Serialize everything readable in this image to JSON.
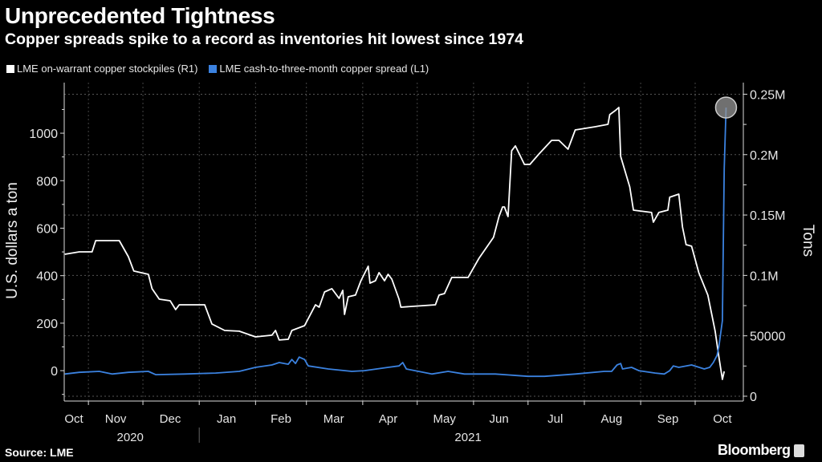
{
  "header": {
    "title": "Unprecedented Tightness",
    "subtitle": "Copper spreads spike to a record as inventories hit lowest since 1974"
  },
  "footer": {
    "source": "Source: LME",
    "brand": "Bloomberg"
  },
  "colors": {
    "background": "#000000",
    "stockpiles": "#ffffff",
    "spread": "#3b82e0",
    "grid": "#555555",
    "highlight": "#9a9a9a"
  },
  "chart_data": {
    "type": "line",
    "title": "Unprecedented Tightness",
    "xlabel": "",
    "x_unit": "days since 2020-10-01",
    "ylabel_left": "U.S. dollars a ton",
    "ylabel_right": "Tons",
    "ylim_left": [
      -128,
      1213
    ],
    "ylim_right": [
      -4000,
      259600
    ],
    "xlim": [
      0,
      395
    ],
    "grid": true,
    "legend_position": "top-left",
    "left_ticks": [
      "0",
      "200",
      "400",
      "600",
      "800",
      "1000"
    ],
    "left_tick_values": [
      0,
      200,
      400,
      600,
      800,
      1000
    ],
    "right_ticks": [
      "0",
      "50000",
      "0.1M",
      "0.15M",
      "0.2M",
      "0.25M"
    ],
    "right_tick_values": [
      0,
      50000,
      100000,
      150000,
      200000,
      250000
    ],
    "month_boundaries": [
      31,
      61,
      92,
      123,
      151,
      182,
      212,
      243,
      273,
      304,
      335,
      365
    ],
    "months": [
      {
        "label": "Oct",
        "day": 23
      },
      {
        "label": "Nov",
        "day": 46
      },
      {
        "label": "Dec",
        "day": 76
      },
      {
        "label": "Jan",
        "day": 107
      },
      {
        "label": "Feb",
        "day": 137
      },
      {
        "label": "Mar",
        "day": 166
      },
      {
        "label": "Apr",
        "day": 196
      },
      {
        "label": "May",
        "day": 227
      },
      {
        "label": "Jun",
        "day": 257
      },
      {
        "label": "Jul",
        "day": 288
      },
      {
        "label": "Aug",
        "day": 319
      },
      {
        "label": "Sep",
        "day": 350
      },
      {
        "label": "Oct",
        "day": 380
      }
    ],
    "years": [
      {
        "label": "2020",
        "day": 54
      },
      {
        "label": "2021",
        "day": 240
      }
    ],
    "year_separator_day": 92,
    "series": [
      {
        "name": "LME on-warrant copper stockpiles (R1)",
        "axis": "right",
        "color": "#ffffff",
        "x": [
          18,
          26,
          33,
          35,
          48,
          53,
          56,
          64,
          66,
          70,
          76,
          79,
          81,
          95,
          99,
          106,
          114,
          123,
          132,
          134,
          136,
          141,
          143,
          150,
          156,
          158,
          161,
          165,
          169,
          171,
          172,
          174,
          178,
          181,
          185,
          186,
          189,
          191,
          194,
          196,
          198,
          202,
          203,
          222,
          224,
          227,
          231,
          240,
          246,
          254,
          257,
          259,
          260,
          262,
          264,
          266,
          271,
          274,
          279,
          286,
          290,
          295,
          299,
          310,
          317,
          318,
          321,
          323,
          324,
          329,
          331,
          341,
          342,
          345,
          350,
          351,
          356,
          358,
          360,
          363,
          367,
          372,
          376,
          378,
          380,
          381
        ],
        "values": [
          117500,
          119500,
          119500,
          128800,
          128800,
          115500,
          103600,
          100900,
          89000,
          80300,
          79000,
          71700,
          75700,
          75700,
          59800,
          54400,
          53800,
          49100,
          50500,
          54400,
          46500,
          47100,
          54400,
          58400,
          75700,
          73700,
          86300,
          89000,
          81000,
          87600,
          67700,
          82300,
          83700,
          95600,
          107600,
          93600,
          95600,
          102300,
          95600,
          100900,
          96900,
          80300,
          73700,
          75700,
          83700,
          85000,
          98300,
          98300,
          114200,
          131500,
          148700,
          156700,
          156700,
          148700,
          203200,
          207200,
          191900,
          191900,
          200500,
          211800,
          211800,
          204500,
          220400,
          223100,
          225100,
          233100,
          236400,
          239000,
          198500,
          173300,
          154000,
          152100,
          144100,
          152100,
          154000,
          164700,
          167300,
          140100,
          125500,
          124200,
          102300,
          83700,
          53800,
          33200,
          13900,
          20600
        ]
      },
      {
        "name": "LME cash-to-three-month copper spread (L1)",
        "axis": "left",
        "color": "#3b82e0",
        "x": [
          18,
          26,
          37,
          44,
          53,
          64,
          68,
          84,
          101,
          114,
          123,
          132,
          136,
          141,
          143,
          145,
          147,
          150,
          152,
          163,
          176,
          183,
          196,
          202,
          204,
          206,
          220,
          229,
          238,
          255,
          273,
          282,
          299,
          315,
          319,
          322,
          324,
          325,
          330,
          334,
          343,
          348,
          351,
          353,
          356,
          363,
          370,
          373,
          375,
          377,
          378,
          380,
          381,
          382
        ],
        "values": [
          -14,
          -7,
          -3,
          -14,
          -7,
          -3,
          -17,
          -14,
          -10,
          -3,
          14,
          24,
          34,
          27,
          47,
          30,
          57,
          47,
          20,
          7,
          -3,
          0,
          14,
          20,
          34,
          7,
          -14,
          -3,
          -14,
          -14,
          -24,
          -24,
          -14,
          -3,
          -3,
          24,
          30,
          7,
          14,
          0,
          -10,
          -14,
          0,
          20,
          14,
          24,
          7,
          14,
          34,
          64,
          98,
          210,
          852,
          1108
        ]
      }
    ],
    "annotations": [
      {
        "type": "circle",
        "series": "LME cash-to-three-month copper spread (L1)",
        "x": 382,
        "value": 1108
      }
    ]
  }
}
